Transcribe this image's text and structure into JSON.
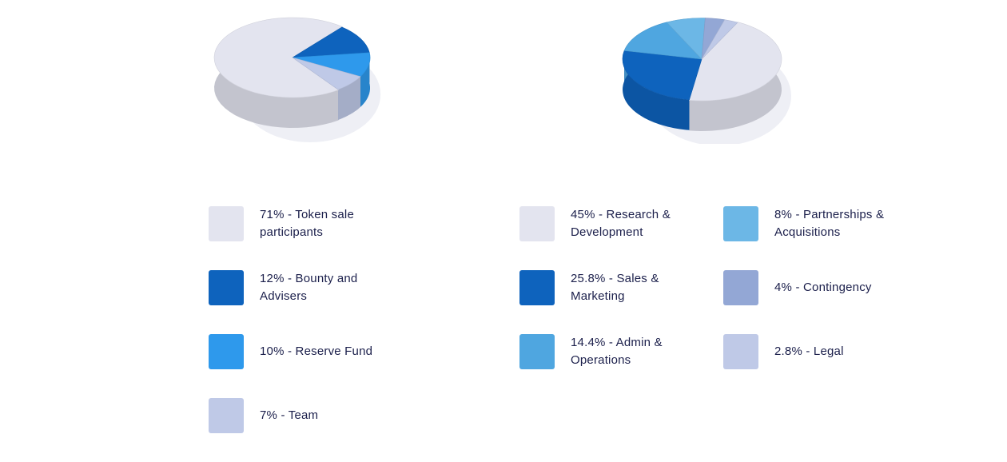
{
  "chart_data": [
    {
      "type": "pie",
      "title": "",
      "slices": [
        {
          "label": "71% - Token sale participants",
          "value": 71,
          "color": "#e3e4ef"
        },
        {
          "label": "12% - Bounty and Advisers",
          "value": 12,
          "color": "#0e63bd"
        },
        {
          "label": "10% - Reserve Fund",
          "value": 10,
          "color": "#2e99ec"
        },
        {
          "label": "7% - Team",
          "value": 7,
          "color": "#bfc9e7"
        }
      ],
      "legend_position": "bottom"
    },
    {
      "type": "pie",
      "title": "",
      "slices": [
        {
          "label": "45% - Research & Development",
          "value": 45,
          "color": "#e3e4ef"
        },
        {
          "label": "25.8% - Sales & Marketing",
          "value": 25.8,
          "color": "#0e63bd"
        },
        {
          "label": "14.4% - Admin & Operations",
          "value": 14.4,
          "color": "#4fa6e0"
        },
        {
          "label": "8% - Partnerships & Acquisitions",
          "value": 8,
          "color": "#6cb7e6"
        },
        {
          "label": "4% - Contingency",
          "value": 4,
          "color": "#93a7d5"
        },
        {
          "label": "2.8% - Legal",
          "value": 2.8,
          "color": "#bfc9e7"
        }
      ],
      "legend_position": "bottom"
    }
  ]
}
